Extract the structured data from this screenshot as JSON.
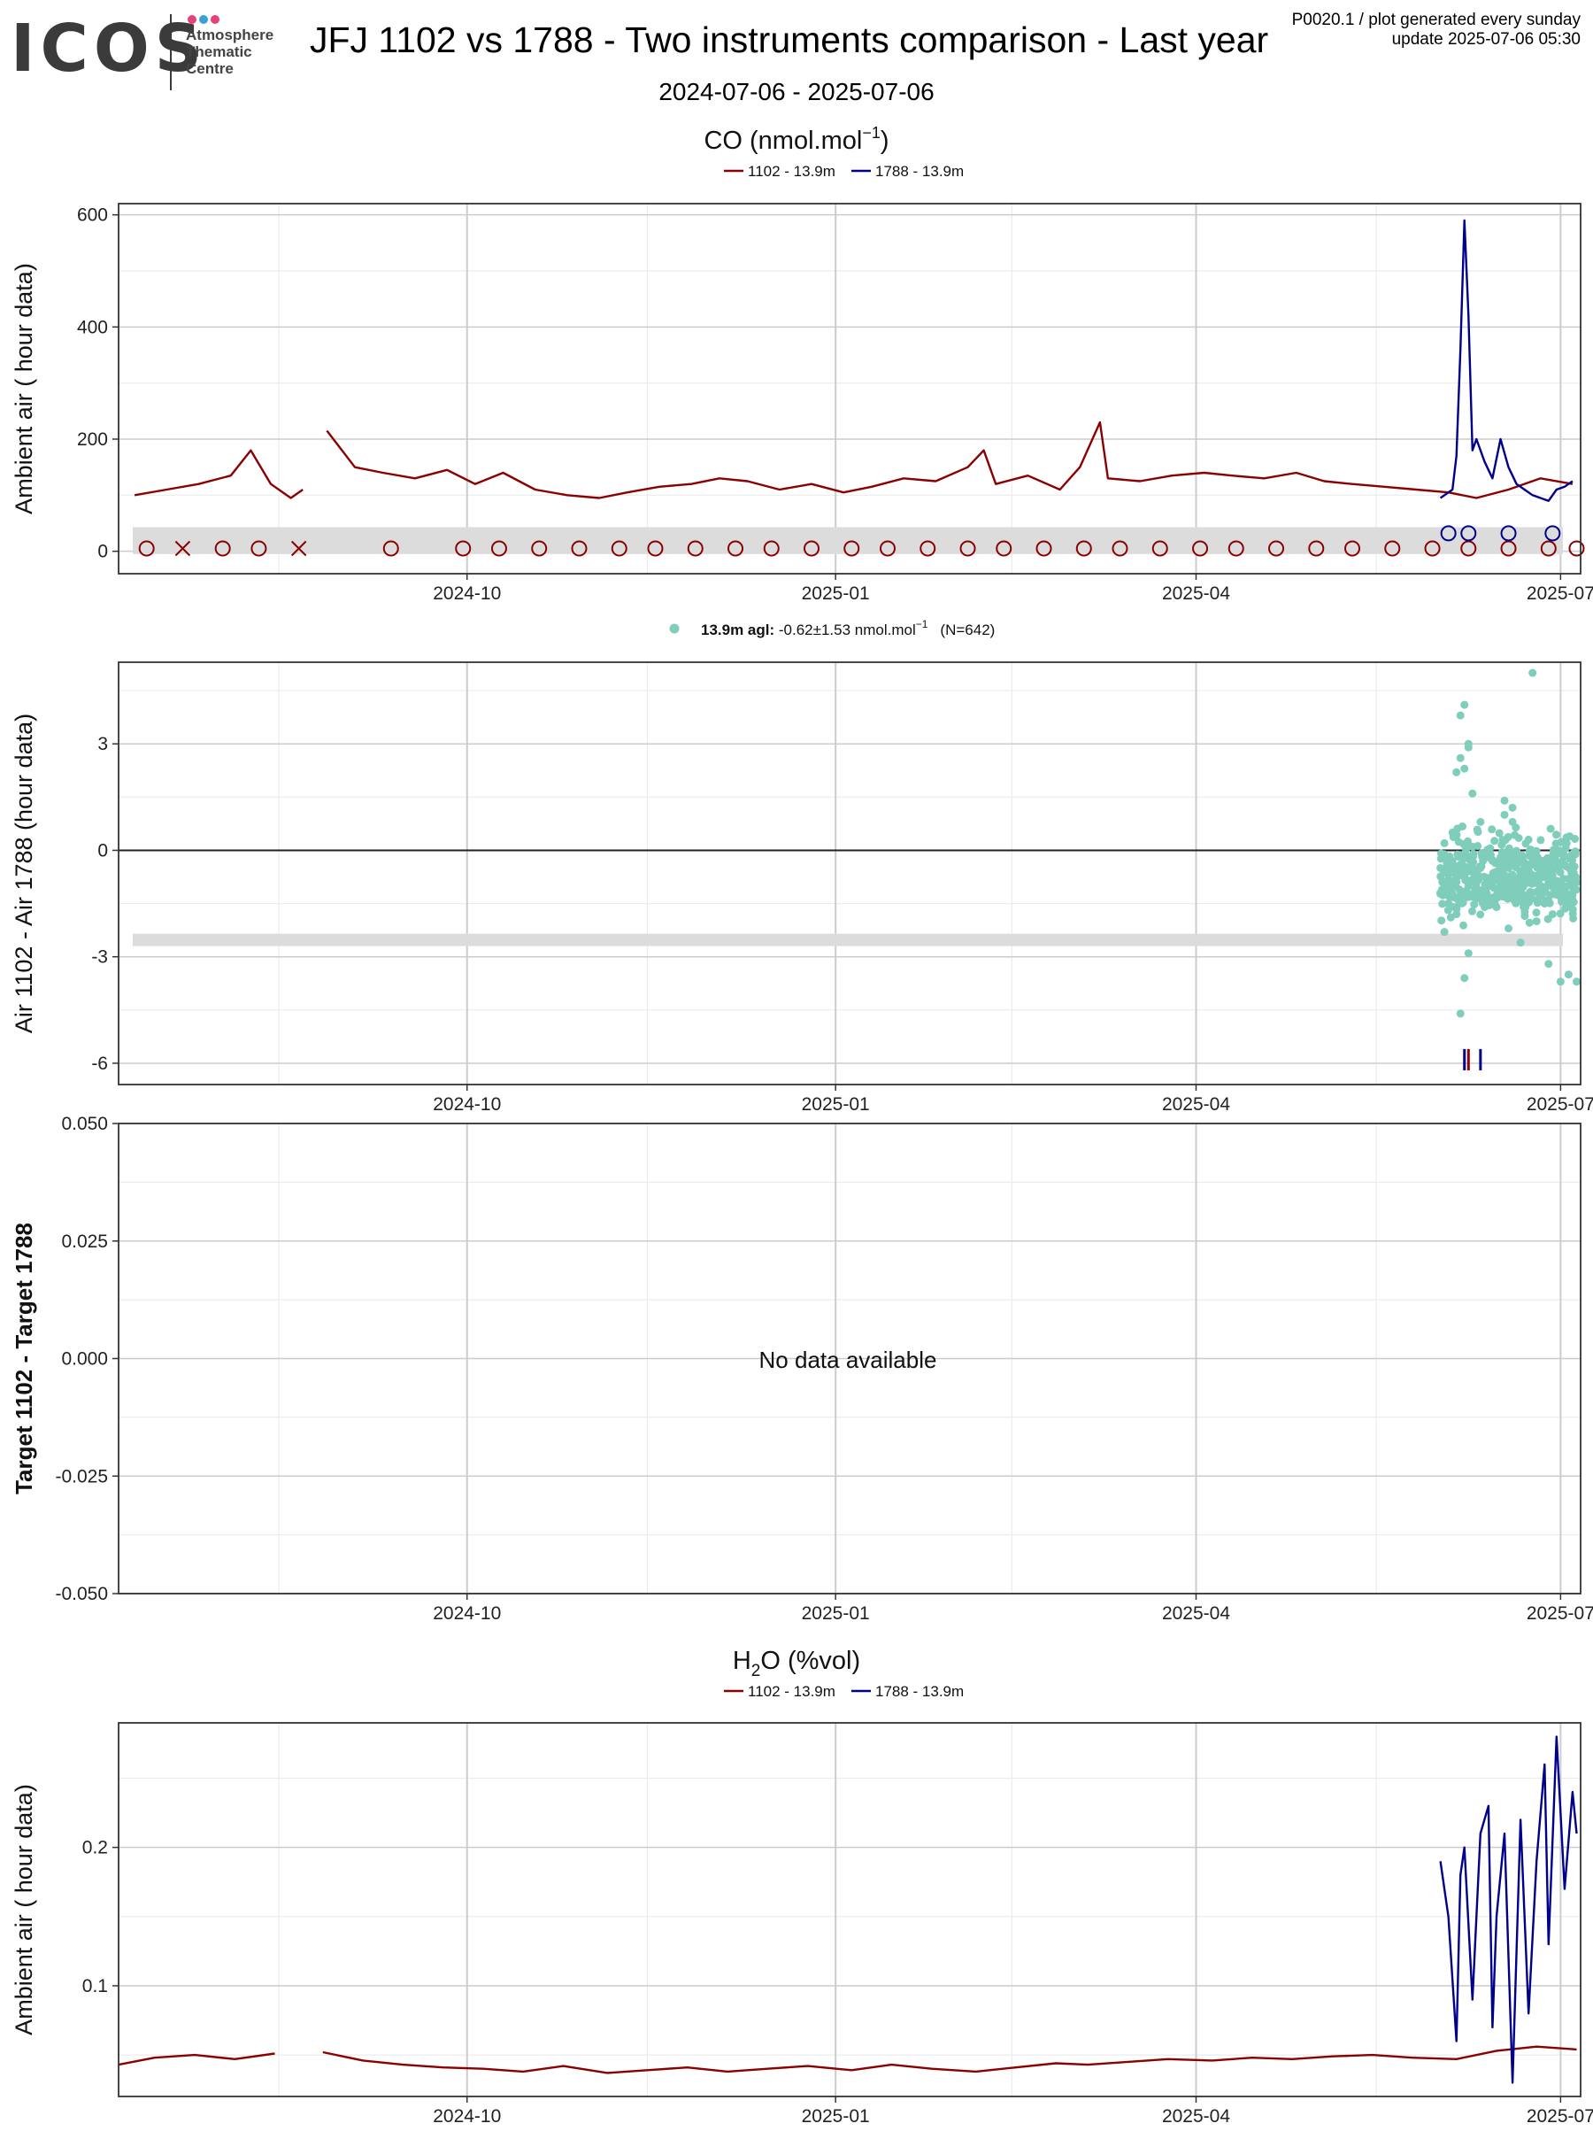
{
  "header": {
    "logo_text": "ICOS",
    "logo_sub": [
      "Atmosphere",
      "Thematic",
      "Centre"
    ],
    "title": "JFJ 1102 vs 1788 - Two instruments comparison - Last year",
    "date_range": "2024-07-06 - 2025-07-06",
    "product_line": "P0020.1 / plot generated every sunday",
    "update_line": "update  2025-07-06 05:30"
  },
  "colors": {
    "inst_1102": "#8b0000",
    "inst_1788": "#00008b",
    "diff_points": "#7fcdbb",
    "band": "#dcdcdc",
    "grid_major": "#cccccc",
    "grid_minor": "#ececec",
    "logo_dots": [
      "#e6417a",
      "#3aa0dc",
      "#e6417a"
    ]
  },
  "chart_data": [
    {
      "id": "co_timeseries",
      "type": "line",
      "title": "CO (nmol.mol",
      "title_sup": "−1",
      "title_close": ")",
      "ylabel": "Ambient air ( hour data)",
      "xlabel": "",
      "x_ticks": [
        "2024-10",
        "2025-01",
        "2025-04",
        "2025-07"
      ],
      "x_range": [
        "2024-07-06",
        "2025-07-06"
      ],
      "y_ticks": [
        "0",
        "200",
        "400",
        "600"
      ],
      "ylim": [
        -40,
        620
      ],
      "grid": true,
      "legend_position": "top-center",
      "legend": [
        "1102 - 13.9m",
        "1788 - 13.9m"
      ],
      "series": [
        {
          "name": "1102 - 13.9m",
          "x": [
            "2024-07-10",
            "2024-07-18",
            "2024-07-26",
            "2024-08-03",
            "2024-08-08",
            "2024-08-13",
            "2024-08-18",
            "2024-08-21",
            "2024-08-26",
            "2024-08-27",
            "2024-09-03",
            "2024-09-10",
            "2024-09-18",
            "2024-09-26",
            "2024-10-03",
            "2024-10-10",
            "2024-10-18",
            "2024-10-26",
            "2024-11-03",
            "2024-11-10",
            "2024-11-18",
            "2024-11-26",
            "2024-12-03",
            "2024-12-10",
            "2024-12-18",
            "2024-12-26",
            "2025-01-03",
            "2025-01-10",
            "2025-01-18",
            "2025-01-26",
            "2025-02-03",
            "2025-02-07",
            "2025-02-10",
            "2025-02-18",
            "2025-02-26",
            "2025-03-03",
            "2025-03-08",
            "2025-03-10",
            "2025-03-18",
            "2025-03-26",
            "2025-04-03",
            "2025-04-10",
            "2025-04-18",
            "2025-04-26",
            "2025-05-03",
            "2025-05-10",
            "2025-05-18",
            "2025-05-26",
            "2025-06-03",
            "2025-06-10",
            "2025-06-18",
            "2025-06-26",
            "2025-07-04"
          ],
          "y": [
            100,
            110,
            120,
            135,
            180,
            120,
            95,
            110,
            null,
            215,
            150,
            140,
            130,
            145,
            120,
            140,
            110,
            100,
            95,
            105,
            115,
            120,
            130,
            125,
            110,
            120,
            105,
            115,
            130,
            125,
            150,
            180,
            120,
            135,
            110,
            150,
            230,
            130,
            125,
            135,
            140,
            135,
            130,
            140,
            125,
            120,
            115,
            110,
            105,
            95,
            110,
            130,
            120
          ]
        },
        {
          "name": "1788 - 13.9m",
          "x": [
            "2025-06-01",
            "2025-06-04",
            "2025-06-05",
            "2025-06-06",
            "2025-06-07",
            "2025-06-08",
            "2025-06-09",
            "2025-06-10",
            "2025-06-12",
            "2025-06-14",
            "2025-06-16",
            "2025-06-18",
            "2025-06-20",
            "2025-06-22",
            "2025-06-24",
            "2025-06-26",
            "2025-06-28",
            "2025-06-30",
            "2025-07-02",
            "2025-07-04"
          ],
          "y": [
            95,
            110,
            170,
            360,
            590,
            420,
            180,
            200,
            160,
            130,
            200,
            150,
            120,
            110,
            100,
            95,
            90,
            110,
            115,
            125
          ]
        }
      ],
      "markers": [
        {
          "name": "1102 - 13.9m",
          "x": [
            "2024-07-13",
            "2024-07-22",
            "2024-08-01",
            "2024-08-10",
            "2024-08-20",
            "2024-09-12",
            "2024-09-30",
            "2024-10-09",
            "2024-10-19",
            "2024-10-29",
            "2024-11-08",
            "2024-11-17",
            "2024-11-27",
            "2024-12-07",
            "2024-12-16",
            "2024-12-26",
            "2025-01-05",
            "2025-01-14",
            "2025-01-24",
            "2025-02-03",
            "2025-02-12",
            "2025-02-22",
            "2025-03-04",
            "2025-03-13",
            "2025-03-23",
            "2025-04-02",
            "2025-04-11",
            "2025-04-21",
            "2025-05-01",
            "2025-05-10",
            "2025-05-20",
            "2025-05-30",
            "2025-06-08",
            "2025-06-18",
            "2025-06-28",
            "2025-07-05"
          ],
          "y": [
            5,
            5,
            5,
            5,
            5,
            5,
            5,
            5,
            5,
            5,
            5,
            5,
            5,
            5,
            5,
            5,
            5,
            5,
            5,
            5,
            5,
            5,
            5,
            5,
            5,
            5,
            5,
            5,
            5,
            5,
            5,
            5,
            5,
            5,
            5,
            5
          ],
          "symbols": [
            "o",
            "x",
            "o",
            "o",
            "x",
            "o",
            "o",
            "o",
            "o",
            "o",
            "o",
            "o",
            "o",
            "o",
            "o",
            "o",
            "o",
            "o",
            "o",
            "o",
            "o",
            "o",
            "o",
            "o",
            "o",
            "o",
            "o",
            "o",
            "o",
            "o",
            "o",
            "o",
            "o",
            "o",
            "o",
            "o"
          ]
        },
        {
          "name": "1788 - 13.9m",
          "x": [
            "2025-06-03",
            "2025-06-08",
            "2025-06-18",
            "2025-06-29"
          ],
          "y": [
            32,
            32,
            32,
            32
          ],
          "symbols": [
            "o",
            "o",
            "o",
            "o"
          ]
        }
      ]
    },
    {
      "id": "co_difference",
      "type": "scatter",
      "title": "",
      "ylabel": "Air 1102 - Air 1788 (hour data)",
      "legend_bold": "13.9m agl:",
      "legend_stat": " -0.62±1.53 nmol.mol",
      "legend_sup": "−1",
      "legend_n": "(N=642)",
      "x_ticks": [
        "2024-10",
        "2025-01",
        "2025-04",
        "2025-07"
      ],
      "y_ticks": [
        "-6",
        "-3",
        "0",
        "3"
      ],
      "ylim": [
        -6.6,
        5.3
      ],
      "zero_line": true,
      "grid": true,
      "x": [
        "2025-06-01",
        "2025-06-01",
        "2025-06-02",
        "2025-06-02",
        "2025-06-03",
        "2025-06-03",
        "2025-06-04",
        "2025-06-04",
        "2025-06-05",
        "2025-06-05",
        "2025-06-05",
        "2025-06-06",
        "2025-06-06",
        "2025-06-06",
        "2025-06-07",
        "2025-06-07",
        "2025-06-07",
        "2025-06-08",
        "2025-06-08",
        "2025-06-08",
        "2025-06-09",
        "2025-06-09",
        "2025-06-10",
        "2025-06-10",
        "2025-06-11",
        "2025-06-11",
        "2025-06-12",
        "2025-06-12",
        "2025-06-13",
        "2025-06-13",
        "2025-06-14",
        "2025-06-14",
        "2025-06-15",
        "2025-06-15",
        "2025-06-16",
        "2025-06-16",
        "2025-06-17",
        "2025-06-17",
        "2025-06-18",
        "2025-06-18",
        "2025-06-19",
        "2025-06-19",
        "2025-06-20",
        "2025-06-20",
        "2025-06-21",
        "2025-06-21",
        "2025-06-22",
        "2025-06-22",
        "2025-06-23",
        "2025-06-23",
        "2025-06-24",
        "2025-06-24",
        "2025-06-25",
        "2025-06-25",
        "2025-06-26",
        "2025-06-26",
        "2025-06-27",
        "2025-06-27",
        "2025-06-28",
        "2025-06-28",
        "2025-06-29",
        "2025-06-29",
        "2025-06-30",
        "2025-06-30",
        "2025-07-01",
        "2025-07-01",
        "2025-07-02",
        "2025-07-02",
        "2025-07-03",
        "2025-07-03",
        "2025-07-04",
        "2025-07-04",
        "2025-07-05",
        "2025-07-05",
        "2025-06-06",
        "2025-06-07",
        "2025-06-08",
        "2025-06-09",
        "2025-06-17",
        "2025-06-19",
        "2025-06-24",
        "2025-07-03"
      ],
      "y": [
        -0.5,
        -1.2,
        0.2,
        -2.3,
        -0.8,
        -1.5,
        0.5,
        -0.3,
        2.2,
        -0.9,
        -1.8,
        3.8,
        -0.4,
        -4.6,
        4.1,
        -0.7,
        -3.6,
        3.0,
        -1.0,
        -2.9,
        0.1,
        -0.6,
        -0.9,
        -1.3,
        0.8,
        -0.5,
        -0.2,
        -1.1,
        -0.8,
        -1.5,
        -0.3,
        -0.9,
        -1.6,
        -0.6,
        -0.2,
        -1.0,
        1.4,
        -0.7,
        -2.2,
        -0.5,
        1.2,
        -1.3,
        -0.8,
        -0.4,
        -1.1,
        -2.6,
        -0.6,
        -1.4,
        0.3,
        -0.9,
        -1.2,
        -0.4,
        -2.0,
        -0.8,
        -1.0,
        -0.6,
        -0.3,
        -1.5,
        -0.9,
        -3.2,
        -1.8,
        -0.7,
        -0.5,
        -1.2,
        -3.7,
        -0.9,
        -1.1,
        -0.4,
        -3.5,
        -0.8,
        -0.6,
        -1.4,
        -0.9,
        -3.7,
        2.6,
        2.3,
        2.9,
        1.6,
        1.0,
        0.8,
        5.0,
        -1.0
      ]
    },
    {
      "id": "target_difference",
      "type": "scatter",
      "title": "",
      "ylabel": "Target 1102 - Target 1788",
      "no_data_text": "No data available",
      "x_ticks": [
        "2024-10",
        "2025-01",
        "2025-04",
        "2025-07"
      ],
      "y_ticks": [
        "-0.050",
        "-0.025",
        "0.000",
        "0.025",
        "0.050"
      ],
      "ylim": [
        -0.05,
        0.05
      ],
      "grid": true
    },
    {
      "id": "h2o_timeseries",
      "type": "line",
      "title_pre": "H",
      "title_sub": "2",
      "title_post": "O (%vol)",
      "ylabel": "Ambient air ( hour data)",
      "x_ticks": [
        "2024-10",
        "2025-01",
        "2025-04",
        "2025-07"
      ],
      "y_ticks": [
        "0.1",
        "0.2"
      ],
      "ylim": [
        0.02,
        0.29
      ],
      "grid": true,
      "legend_position": "top-center",
      "legend": [
        "1102 - 13.9m",
        "1788 - 13.9m"
      ],
      "series": [
        {
          "name": "1102 - 13.9m",
          "x": [
            "2024-07-06",
            "2024-07-15",
            "2024-07-25",
            "2024-08-04",
            "2024-08-14",
            "2024-08-20",
            "2024-08-26",
            "2024-09-05",
            "2024-09-15",
            "2024-09-25",
            "2024-10-05",
            "2024-10-15",
            "2024-10-25",
            "2024-11-05",
            "2024-11-15",
            "2024-11-25",
            "2024-12-05",
            "2024-12-15",
            "2024-12-25",
            "2025-01-05",
            "2025-01-15",
            "2025-01-25",
            "2025-02-05",
            "2025-02-15",
            "2025-02-25",
            "2025-03-05",
            "2025-03-15",
            "2025-03-25",
            "2025-04-05",
            "2025-04-15",
            "2025-04-25",
            "2025-05-05",
            "2025-05-15",
            "2025-05-25",
            "2025-06-05",
            "2025-06-15",
            "2025-06-25",
            "2025-07-05"
          ],
          "y": [
            0.043,
            0.048,
            0.05,
            0.047,
            0.051,
            null,
            0.052,
            0.046,
            0.043,
            0.041,
            0.04,
            0.038,
            0.042,
            0.037,
            0.039,
            0.041,
            0.038,
            0.04,
            0.042,
            0.039,
            0.043,
            0.04,
            0.038,
            0.041,
            0.044,
            0.043,
            0.045,
            0.047,
            0.046,
            0.048,
            0.047,
            0.049,
            0.05,
            0.048,
            0.047,
            0.053,
            0.056,
            0.054
          ]
        },
        {
          "name": "1788 - 13.9m",
          "x": [
            "2025-06-01",
            "2025-06-03",
            "2025-06-05",
            "2025-06-06",
            "2025-06-07",
            "2025-06-09",
            "2025-06-11",
            "2025-06-13",
            "2025-06-14",
            "2025-06-15",
            "2025-06-17",
            "2025-06-19",
            "2025-06-21",
            "2025-06-23",
            "2025-06-25",
            "2025-06-27",
            "2025-06-28",
            "2025-06-30",
            "2025-07-02",
            "2025-07-04",
            "2025-07-05"
          ],
          "y": [
            0.19,
            0.15,
            0.06,
            0.18,
            0.2,
            0.09,
            0.21,
            0.23,
            0.07,
            0.15,
            0.21,
            0.03,
            0.22,
            0.08,
            0.19,
            0.26,
            0.13,
            0.28,
            0.17,
            0.24,
            0.21
          ]
        }
      ]
    }
  ]
}
